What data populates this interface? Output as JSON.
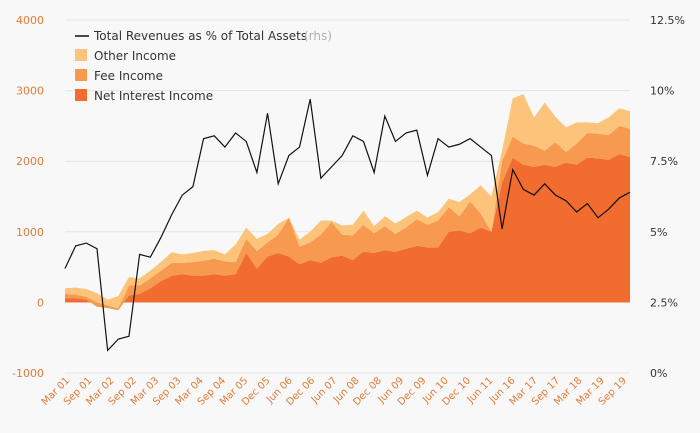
{
  "chart_data": {
    "type": "area",
    "stacked": true,
    "left_axis": {
      "ticks": [
        "4000",
        "3000",
        "2000",
        "1000",
        "0",
        "-1000"
      ],
      "range": [
        -1000,
        4000
      ]
    },
    "right_axis": {
      "ticks": [
        "12.5%",
        "10%",
        "7.5%",
        "5%",
        "2.5%",
        "0%"
      ],
      "range": [
        0,
        12.5
      ]
    },
    "x_labels": [
      "Mar 01",
      "Sep 01",
      "Mar 02",
      "Sep 02",
      "Mar 03",
      "Sep 03",
      "Mar 04",
      "Sep 04",
      "Mar 05",
      "Dec 05",
      "Jun 06",
      "Dec 06",
      "Jun 07",
      "Jun 08",
      "Dec 08",
      "Jun 09",
      "Dec 09",
      "Jun 10",
      "Dec 10",
      "Jun 11",
      "Jun 16",
      "Mar 17",
      "Sep 17",
      "Mar 18",
      "Mar 19",
      "Sep 19"
    ],
    "legend": {
      "line_label": "Total Revenues as % of Total Assets",
      "line_unit": "(rhs)",
      "other_income": "Other Income",
      "fee_income": "Fee Income",
      "net_interest_income": "Net Interest Income"
    },
    "colors": {
      "net_interest_income": "#f26b2f",
      "fee_income": "#f79a4f",
      "other_income": "#fcc47a",
      "line": "#111111",
      "tick": "#e07b39"
    },
    "series": [
      {
        "name": "Net Interest Income",
        "values": [
          60,
          60,
          40,
          -60,
          -80,
          -110,
          100,
          120,
          200,
          300,
          380,
          400,
          380,
          380,
          400,
          380,
          400,
          700,
          480,
          650,
          700,
          650,
          540,
          600,
          560,
          640,
          660,
          600,
          720,
          700,
          740,
          720,
          760,
          800,
          780,
          780,
          1000,
          1020,
          980,
          1060,
          1000,
          1700,
          2050,
          1950,
          1920,
          1950,
          1920,
          1980,
          1950,
          2050,
          2040,
          2020,
          2100,
          2060
        ]
      },
      {
        "name": "Fee Income",
        "values": [
          60,
          50,
          40,
          60,
          30,
          20,
          140,
          120,
          140,
          150,
          180,
          160,
          190,
          210,
          220,
          200,
          170,
          200,
          250,
          200,
          260,
          550,
          250,
          250,
          400,
          500,
          300,
          350,
          380,
          280,
          340,
          250,
          300,
          380,
          320,
          380,
          350,
          200,
          450,
          200,
          0,
          300,
          300,
          300,
          300,
          200,
          350,
          150,
          300,
          350,
          350,
          350,
          400,
          400
        ]
      },
      {
        "name": "Other Income",
        "values": [
          80,
          100,
          110,
          130,
          90,
          180,
          120,
          100,
          110,
          120,
          150,
          120,
          130,
          140,
          120,
          100,
          250,
          160,
          170,
          120,
          150,
          0,
          100,
          150,
          200,
          20,
          130,
          150,
          200,
          100,
          140,
          150,
          150,
          120,
          100,
          120,
          120,
          200,
          100,
          400,
          500,
          150,
          540,
          700,
          400,
          680,
          360,
          350,
          300,
          150,
          150,
          250,
          250,
          250
        ]
      },
      {
        "name": "Total Revenues as % of Total Assets",
        "axis": "right",
        "values": [
          3.7,
          4.5,
          4.6,
          4.4,
          0.8,
          1.2,
          1.3,
          4.2,
          4.1,
          4.8,
          5.6,
          6.3,
          6.6,
          8.3,
          8.4,
          8.0,
          8.5,
          8.2,
          7.1,
          9.2,
          6.7,
          7.7,
          8.0,
          9.7,
          6.9,
          7.3,
          7.7,
          8.4,
          8.2,
          7.1,
          9.1,
          8.2,
          8.5,
          8.6,
          7.0,
          8.3,
          8.0,
          8.1,
          8.3,
          8.0,
          7.7,
          5.1,
          7.2,
          6.5,
          6.3,
          6.7,
          6.3,
          6.1,
          5.7,
          6.0,
          5.5,
          5.8,
          6.2,
          6.4
        ]
      }
    ]
  }
}
